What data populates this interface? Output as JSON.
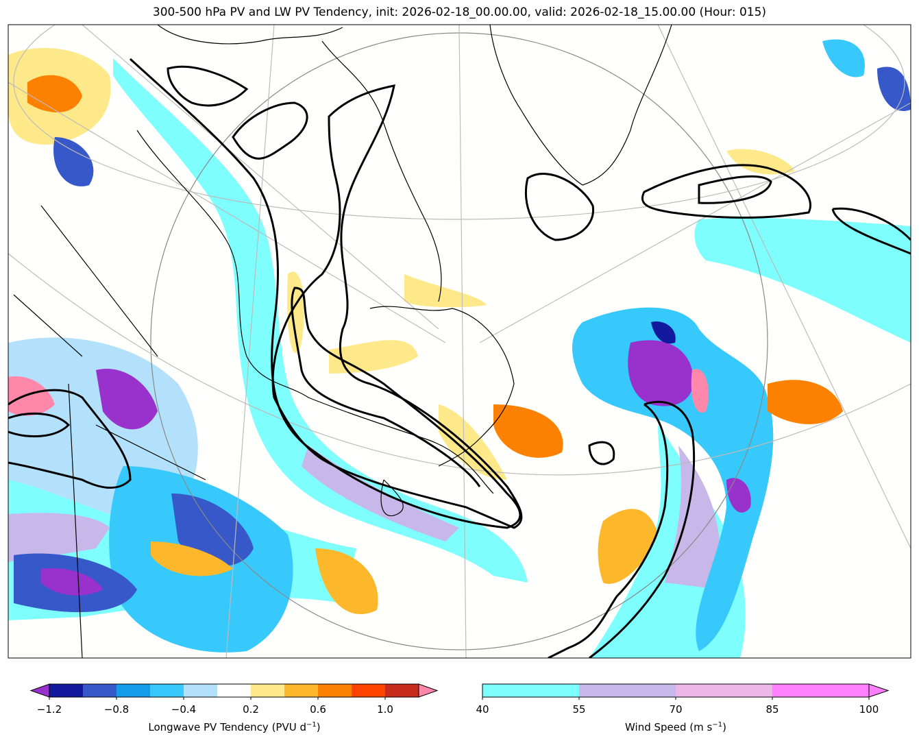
{
  "title": "300-500 hPa PV and LW PV Tendency, init: 2026-02-18_00.00.00, valid: 2026-02-18_15.00.00 (Hour: 015)",
  "colorbar_pv": {
    "label": "Longwave PV Tendency (PVU d",
    "label_sup": "−1",
    "label_end": ")",
    "ticks": [
      "−1.2",
      "−0.8",
      "−0.4",
      "0.2",
      "0.6",
      "1.0"
    ],
    "levels": [
      -1.2,
      -1.0,
      -0.8,
      -0.6,
      -0.4,
      -0.2,
      0.2,
      0.4,
      0.6,
      0.8,
      1.0,
      1.2
    ],
    "colors": [
      "#12199e",
      "#3658c8",
      "#139de8",
      "#38c9fc",
      "#b3e1fc",
      "#ffffff",
      "#fee98a",
      "#fdb72a",
      "#fd8100",
      "#fe4200",
      "#c72b1c"
    ],
    "under_color": "#9932cc",
    "over_color": "#ff88aa"
  },
  "colorbar_wind": {
    "label": "Wind Speed (m s",
    "label_sup": "−1",
    "label_end": ")",
    "ticks": [
      "40",
      "55",
      "70",
      "85",
      "100"
    ],
    "colors": [
      "#7ffefe",
      "#c8b8ea",
      "#ecb8e8",
      "#ff80fe"
    ],
    "over_color": "#ff80fe"
  }
}
